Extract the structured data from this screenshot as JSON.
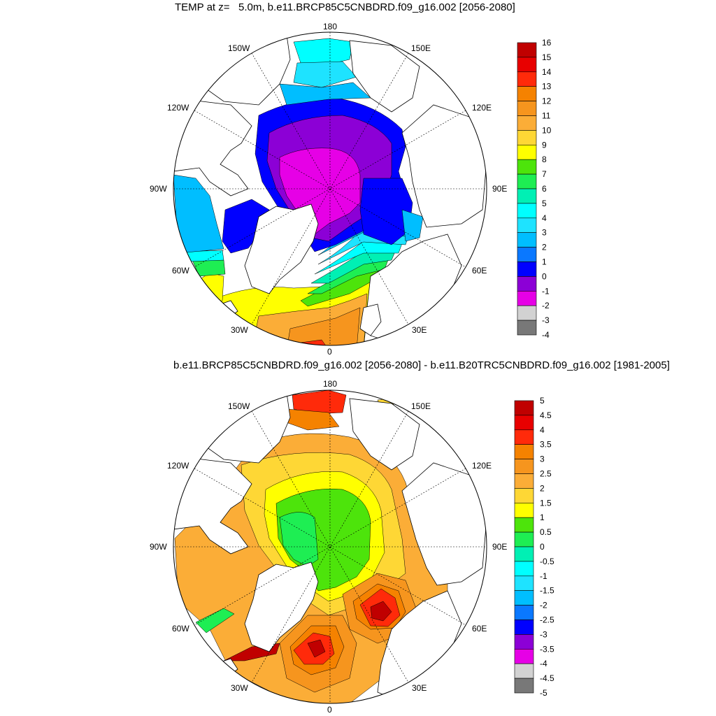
{
  "titles": {
    "top": "TEMP at z=   5.0m, b.e11.BRCP85C5CNBDRD.f09_g16.002 [2056-2080]",
    "bottom": "b.e11.BRCP85C5CNBDRD.f09_g16.002 [2056-2080] - b.e11.B20TRC5CNBDRD.f09_g16.002 [1981-2005]"
  },
  "longitude_labels": {
    "lon_180": "180",
    "lon_150E": "150E",
    "lon_120E": "120E",
    "lon_90E": "90E",
    "lon_60E": "60E",
    "lon_30E": "30E",
    "lon_0": "0",
    "lon_30W": "30W",
    "lon_60W": "60W",
    "lon_90W": "90W",
    "lon_120W": "120W",
    "lon_150W": "150W"
  },
  "colorbar_top": {
    "labels": [
      "16",
      "15",
      "14",
      "13",
      "12",
      "11",
      "10",
      "9",
      "8",
      "7",
      "6",
      "5",
      "4",
      "3",
      "2",
      "1",
      "0",
      "-1",
      "-2",
      "-3",
      "-4"
    ],
    "colors": [
      "#c00000",
      "#e80000",
      "#ff2a0a",
      "#f58200",
      "#f6951e",
      "#fbad37",
      "#fed735",
      "#ffff00",
      "#4de40b",
      "#1eee53",
      "#00f0b4",
      "#00ffff",
      "#1ee3ff",
      "#00beff",
      "#0a78ff",
      "#0000ff",
      "#8c00d6",
      "#e600e6",
      "#d2d2d2",
      "#787878"
    ]
  },
  "colorbar_bottom": {
    "labels": [
      "5",
      "4.5",
      "4",
      "3.5",
      "3",
      "2.5",
      "2",
      "1.5",
      "1",
      "0.5",
      "0",
      "-0.5",
      "-1",
      "-1.5",
      "-2",
      "-2.5",
      "-3",
      "-3.5",
      "-4",
      "-4.5",
      "-5"
    ],
    "colors": [
      "#c00000",
      "#e80000",
      "#ff2a0a",
      "#f58200",
      "#f6951e",
      "#fbad37",
      "#fed735",
      "#ffff00",
      "#4de40b",
      "#1eee53",
      "#00f0b4",
      "#00ffff",
      "#1ee3ff",
      "#00beff",
      "#0a78ff",
      "#0000ff",
      "#8c00d6",
      "#e600e6",
      "#d2d2d2",
      "#787878"
    ]
  },
  "field_colors": {
    "purple": "#8c00d6",
    "magenta": "#e600e6",
    "blue": "#0000ff",
    "blue2": "#0a78ff",
    "sky": "#00beff",
    "cyan": "#1ee3ff",
    "aqua": "#00ffff",
    "teal": "#00f0b4",
    "green": "#1eee53",
    "lime": "#4de40b",
    "yellow": "#ffff00",
    "gold": "#fed735",
    "lightorange": "#fbad37",
    "orange": "#f6951e",
    "darkorange": "#f58200",
    "red": "#ff2a0a",
    "darkred": "#c00000"
  }
}
